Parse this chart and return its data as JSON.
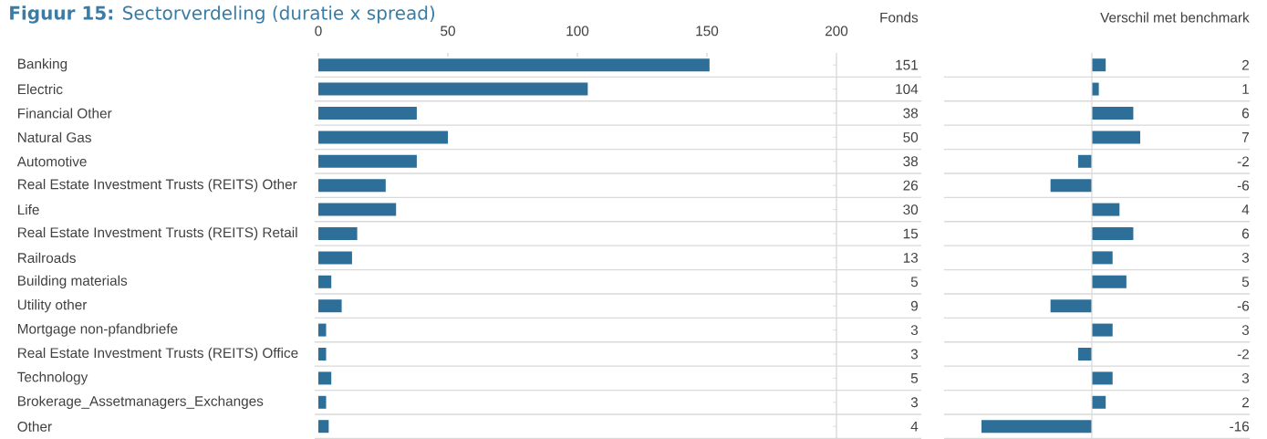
{
  "chart_data": [
    {
      "type": "bar",
      "orientation": "horizontal",
      "title": "**Figuur 15:** Sectorverdeling (duratie x spread)",
      "annotations": [
        "Fonds"
      ],
      "categories": [
        "Banking",
        "Electric",
        "Financial Other",
        "Natural Gas",
        "Automotive",
        "Real Estate Investment Trusts (REITS) Other",
        "Life",
        "Real Estate Investment Trusts (REITS) Retail",
        "Railroads",
        "Building materials",
        "Utility other",
        "Mortgage non-pfandbriefe",
        "Real Estate Investment Trusts (REITS) Office",
        "Technology",
        "Brokerage_Assetmanagers_Exchanges",
        "Other"
      ],
      "values": [
        151,
        104,
        38,
        50,
        38,
        26,
        30,
        15,
        13,
        5,
        9,
        3,
        3,
        5,
        3,
        4
      ],
      "color": "#2e6f99",
      "xlim": [
        0,
        200
      ],
      "xticks": [
        0,
        50,
        100,
        150,
        200
      ],
      "grid": "y",
      "data_labels": true
    },
    {
      "type": "bar",
      "orientation": "horizontal",
      "title": "Verschil met benchmark",
      "categories": [
        null,
        null,
        null,
        null,
        null,
        null,
        null,
        null,
        null,
        null,
        null,
        null,
        null,
        null,
        null,
        null
      ],
      "values": [
        2,
        1,
        6,
        7,
        -2,
        -6,
        4,
        6,
        3,
        5,
        -6,
        3,
        -2,
        3,
        2,
        -16
      ],
      "color": "#2e6f99",
      "grid": "y",
      "data_labels": true
    }
  ]
}
